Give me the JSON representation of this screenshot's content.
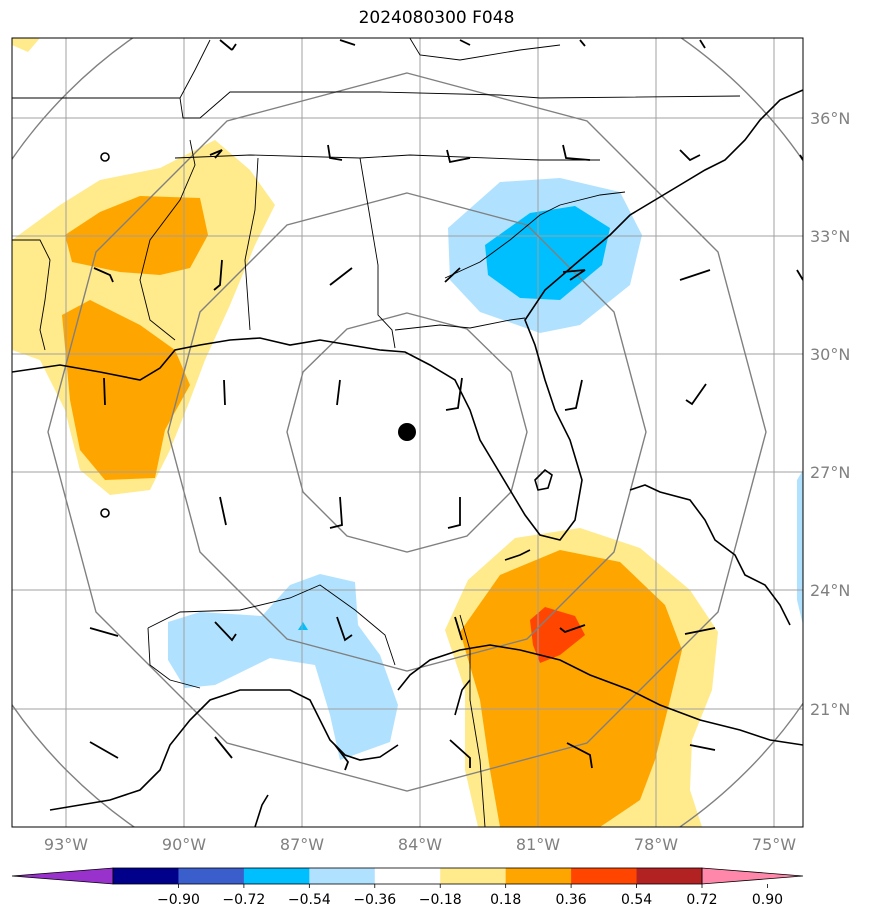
{
  "title": "2024080300 F048",
  "lon_ticks": [
    "93°W",
    "90°W",
    "87°W",
    "84°W",
    "81°W",
    "78°W",
    "75°W"
  ],
  "lat_ticks": [
    "36°N",
    "33°N",
    "30°N",
    "27°N",
    "24°N",
    "21°N"
  ],
  "colorbar": {
    "colors": [
      "#9932cc",
      "#00008b",
      "#3a5fcd",
      "#00bfff",
      "#b0e2ff",
      "#ffffff",
      "#ffea8c",
      "#ffa500",
      "#ff4500",
      "#b22222",
      "#ff88aa"
    ],
    "labels": [
      "−0.90",
      "−0.72",
      "−0.54",
      "−0.36",
      "−0.18",
      "0.18",
      "0.36",
      "0.54",
      "0.72",
      "0.90"
    ]
  },
  "center_marker": {
    "lon": "84°W",
    "lat": "28°N"
  }
}
